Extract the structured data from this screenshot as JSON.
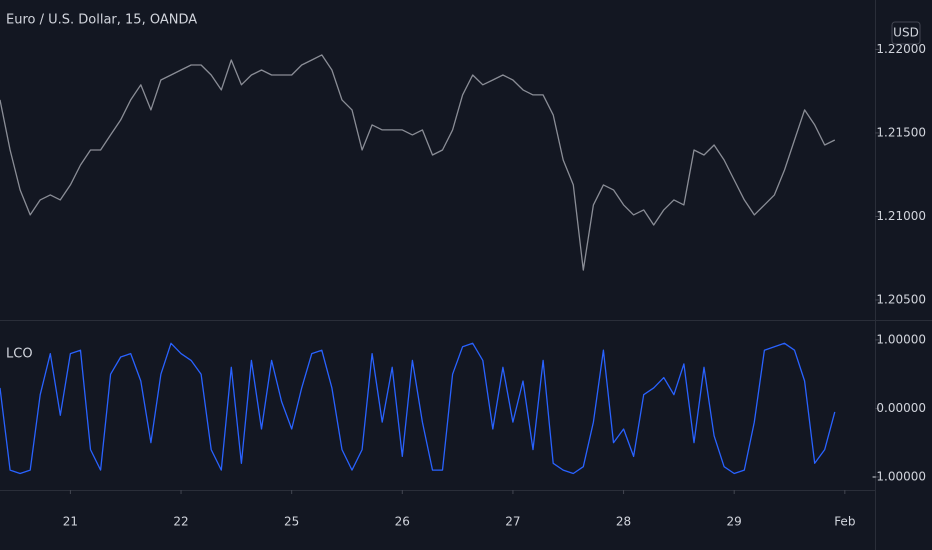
{
  "chart_data": [
    {
      "type": "line",
      "title": "Euro / U.S. Dollar, 15, OANDA",
      "currency": "USD",
      "series": [
        {
          "name": null,
          "color": "#8a8d96",
          "values": [
            1.21698,
            1.21398,
            1.21159,
            1.21009,
            1.21099,
            1.21129,
            1.21099,
            1.21189,
            1.21308,
            1.21398,
            1.21398,
            1.21488,
            1.21578,
            1.21698,
            1.21788,
            1.21638,
            1.21817,
            1.21847,
            1.21877,
            1.21907,
            1.21907,
            1.21847,
            1.21758,
            1.21937,
            1.21788,
            1.21847,
            1.21877,
            1.21847,
            1.21847,
            1.21847,
            1.21907,
            1.21937,
            1.21967,
            1.21877,
            1.21698,
            1.21638,
            1.21398,
            1.21548,
            1.21518,
            1.21518,
            1.21518,
            1.21488,
            1.21518,
            1.21368,
            1.21398,
            1.21518,
            1.21728,
            1.21847,
            1.21788,
            1.21817,
            1.21847,
            1.21817,
            1.21758,
            1.21728,
            1.21728,
            1.21608,
            1.21338,
            1.21189,
            1.20679,
            1.21069,
            1.21189,
            1.21159,
            1.21069,
            1.21009,
            1.21039,
            1.20949,
            1.21039,
            1.21099,
            1.21069,
            1.21398,
            1.21368,
            1.21428,
            1.21338,
            1.21218,
            1.21099,
            1.21009,
            1.21069,
            1.21129,
            1.21278,
            1.21458,
            1.21638,
            1.21548,
            1.21428,
            1.21458
          ]
        }
      ],
      "xlim": [
        0,
        87
      ],
      "ylim": [
        1.2038,
        1.22296
      ],
      "yticks": [
        {
          "value": 1.205,
          "label": "1.20500"
        },
        {
          "value": 1.21,
          "label": "1.21000"
        },
        {
          "value": 1.215,
          "label": "1.21500"
        },
        {
          "value": 1.22,
          "label": "1.22000"
        }
      ]
    },
    {
      "type": "line",
      "title": "LCO",
      "series": [
        {
          "name": null,
          "color": "#2962ff",
          "values": [
            0.3,
            -0.9,
            -0.95,
            -0.9,
            0.2,
            0.8,
            -0.1,
            0.8,
            0.85,
            -0.6,
            -0.9,
            0.5,
            0.75,
            0.8,
            0.4,
            -0.5,
            0.5,
            0.95,
            0.8,
            0.7,
            0.5,
            -0.6,
            -0.9,
            0.6,
            -0.8,
            0.7,
            -0.3,
            0.7,
            0.1,
            -0.3,
            0.3,
            0.8,
            0.85,
            0.3,
            -0.6,
            -0.9,
            -0.6,
            0.8,
            -0.2,
            0.6,
            -0.7,
            0.7,
            -0.2,
            -0.9,
            -0.9,
            0.5,
            0.9,
            0.95,
            0.7,
            -0.3,
            0.6,
            -0.2,
            0.4,
            -0.6,
            0.7,
            -0.8,
            -0.9,
            -0.95,
            -0.85,
            -0.2,
            0.85,
            -0.5,
            -0.3,
            -0.7,
            0.2,
            0.3,
            0.45,
            0.2,
            0.65,
            -0.5,
            0.6,
            -0.4,
            -0.85,
            -0.95,
            -0.9,
            -0.2,
            0.85,
            0.9,
            0.95,
            0.85,
            0.4,
            -0.8,
            -0.6,
            -0.05
          ]
        }
      ],
      "xlim": [
        0,
        87
      ],
      "xticks": [
        {
          "value": 7,
          "label": "21"
        },
        {
          "value": 18,
          "label": "22"
        },
        {
          "value": 29,
          "label": "25"
        },
        {
          "value": 40,
          "label": "26"
        },
        {
          "value": 51,
          "label": "27"
        },
        {
          "value": 62,
          "label": "28"
        },
        {
          "value": 73,
          "label": "29"
        },
        {
          "value": 84,
          "label": "Feb"
        }
      ],
      "ylim": [
        -1.19,
        1.29
      ],
      "yticks": [
        {
          "value": 1,
          "label": "1.00000"
        },
        {
          "value": 0,
          "label": "0.00000"
        },
        {
          "value": -1,
          "label": "-1.00000"
        }
      ]
    }
  ]
}
